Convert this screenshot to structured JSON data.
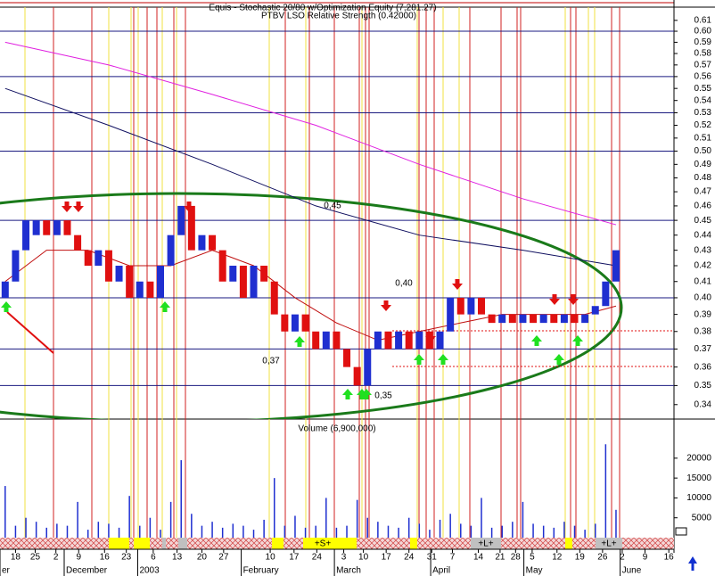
{
  "chart_data": {
    "type": "candlestick",
    "title": "Equis - Stochastic 20/80  w/Optimization Equity (7,281.27)",
    "subtitle": "PTBV LSO Relative Strength (0.42000)",
    "log_scale": true,
    "xlim": [
      -0.5,
      64.6
    ],
    "ylim": [
      0.3326,
      0.6224
    ],
    "yticks": [
      0.34,
      0.35,
      0.36,
      0.37,
      0.38,
      0.39,
      {
        "value": 0.4,
        "label": "0.40"
      },
      0.41,
      0.42,
      0.43,
      0.44,
      0.45,
      0.46,
      0.47,
      0.48,
      0.49,
      {
        "value": 0.5,
        "label": "0.50"
      },
      0.51,
      0.52,
      0.53,
      0.54,
      0.55,
      0.56,
      0.57,
      0.58,
      0.59,
      {
        "value": 0.6,
        "label": "0.60"
      },
      0.61
    ],
    "levels": [
      0.6,
      0.56,
      0.53,
      0.5,
      0.45,
      0.4,
      0.37,
      0.35
    ],
    "up_color": "#1f2fd0",
    "down_color": "#e01010",
    "open": [
      0.4,
      0.41,
      0.43,
      0.44,
      0.45,
      0.44,
      0.45,
      0.44,
      0.43,
      0.42,
      0.43,
      0.41,
      0.42,
      0.4,
      0.41,
      0.4,
      0.42,
      0.44,
      0.46,
      0.43,
      0.44,
      0.43,
      0.41,
      0.42,
      0.4,
      0.42,
      0.41,
      0.39,
      0.38,
      0.39,
      0.38,
      0.37,
      0.38,
      0.37,
      0.36,
      0.35,
      0.37,
      0.38,
      0.37,
      0.38,
      0.37,
      0.38,
      0.37,
      0.38,
      0.4,
      0.39,
      0.4,
      0.39,
      0.385,
      0.39,
      0.385,
      0.39,
      0.385,
      0.39,
      0.385,
      0.39,
      0.385,
      0.39,
      0.395,
      0.41
    ],
    "close": [
      0.41,
      0.43,
      0.45,
      0.45,
      0.44,
      0.45,
      0.44,
      0.43,
      0.42,
      0.43,
      0.41,
      0.42,
      0.4,
      0.41,
      0.4,
      0.42,
      0.44,
      0.46,
      0.43,
      0.44,
      0.43,
      0.41,
      0.42,
      0.4,
      0.42,
      0.41,
      0.39,
      0.38,
      0.39,
      0.38,
      0.37,
      0.38,
      0.37,
      0.36,
      0.35,
      0.37,
      0.38,
      0.37,
      0.38,
      0.37,
      0.38,
      0.37,
      0.38,
      0.4,
      0.39,
      0.4,
      0.39,
      0.385,
      0.39,
      0.385,
      0.39,
      0.385,
      0.39,
      0.385,
      0.39,
      0.385,
      0.39,
      0.395,
      0.41,
      0.43
    ],
    "lines": [
      {
        "color": "#101060",
        "x": [
          0,
          10,
          20,
          30,
          40,
          50,
          59
        ],
        "values": [
          0.55,
          0.52,
          0.49,
          0.46,
          0.44,
          0.43,
          0.42
        ]
      },
      {
        "color": "#e020e0",
        "x": [
          0,
          10,
          20,
          30,
          40,
          50,
          59
        ],
        "values": [
          0.59,
          0.57,
          0.545,
          0.52,
          0.49,
          0.465,
          0.447
        ]
      },
      {
        "color": "#c01010",
        "x": [
          0,
          4,
          8,
          12,
          16,
          20,
          24,
          28,
          32,
          36,
          40,
          44,
          48,
          52,
          56,
          59
        ],
        "values": [
          0.41,
          0.43,
          0.43,
          0.42,
          0.42,
          0.43,
          0.42,
          0.4,
          0.385,
          0.375,
          0.38,
          0.385,
          0.39,
          0.39,
          0.39,
          0.395
        ]
      }
    ],
    "annotations": [
      "0,45",
      "0,40",
      "0,37",
      "0,35"
    ],
    "volume_label": "Volume (6,900,000)",
    "volume_color": "#1f2fd0",
    "volume_ylim": [
      0,
      25800
    ],
    "volume_yticks": [
      5000,
      10000,
      15000,
      20000
    ],
    "volume": [
      13000,
      3000,
      5000,
      4000,
      2500,
      3500,
      3000,
      9000,
      2000,
      4000,
      3500,
      2500,
      10500,
      3000,
      5000,
      2000,
      9000,
      19500,
      6000,
      3000,
      4000,
      2500,
      3500,
      3000,
      2000,
      4500,
      15000,
      3000,
      5500,
      2500,
      3000,
      10000,
      2500,
      3000,
      9500,
      5000,
      4000,
      3000,
      2500,
      5000,
      3500,
      2000,
      4500,
      6000,
      3500,
      3000,
      10000,
      2500,
      3000,
      4000,
      9000,
      3500,
      3000,
      2500,
      4000,
      3000,
      2000,
      3500,
      23500,
      7000
    ],
    "band_labels": [
      "+S+",
      "+L+",
      "+L+"
    ],
    "xticks": [
      {
        "value": 1.0,
        "label": "18"
      },
      {
        "value": 2.9,
        "label": "25"
      },
      {
        "value": 4.9,
        "label": "2"
      },
      {
        "value": 7.1,
        "label": "9"
      },
      {
        "value": 9.6,
        "label": "16"
      },
      {
        "value": 11.7,
        "label": "23"
      },
      {
        "value": 14.3,
        "label": "6"
      },
      {
        "value": 16.6,
        "label": "13"
      },
      {
        "value": 19.0,
        "label": "20"
      },
      {
        "value": 21.1,
        "label": "27"
      },
      {
        "value": 25.6,
        "label": "10"
      },
      {
        "value": 27.9,
        "label": "17"
      },
      {
        "value": 30.1,
        "label": "24"
      },
      {
        "value": 32.7,
        "label": "3"
      },
      {
        "value": 34.6,
        "label": "10"
      },
      {
        "value": 36.8,
        "label": "17"
      },
      {
        "value": 39.0,
        "label": "24"
      },
      {
        "value": 41.2,
        "label": "31"
      },
      {
        "value": 43.2,
        "label": "7"
      },
      {
        "value": 45.7,
        "label": "14"
      },
      {
        "value": 47.8,
        "label": "21"
      },
      {
        "value": 49.3,
        "label": "28"
      },
      {
        "value": 50.9,
        "label": "5"
      },
      {
        "value": 53.3,
        "label": "12"
      },
      {
        "value": 55.5,
        "label": "19"
      },
      {
        "value": 57.7,
        "label": "26"
      },
      {
        "value": 59.6,
        "label": "2"
      },
      {
        "value": 61.8,
        "label": "9"
      },
      {
        "value": 64.1,
        "label": "16"
      }
    ],
    "month_ticks": [
      {
        "value": -0.5,
        "label": "er"
      },
      {
        "value": 5.7,
        "label": "December"
      },
      {
        "value": 12.8,
        "label": "2003"
      },
      {
        "value": 22.8,
        "label": "February"
      },
      {
        "value": 31.8,
        "label": "March"
      },
      {
        "value": 41.1,
        "label": "April"
      },
      {
        "value": 50.1,
        "label": "May"
      },
      {
        "value": 59.4,
        "label": "June"
      }
    ]
  }
}
